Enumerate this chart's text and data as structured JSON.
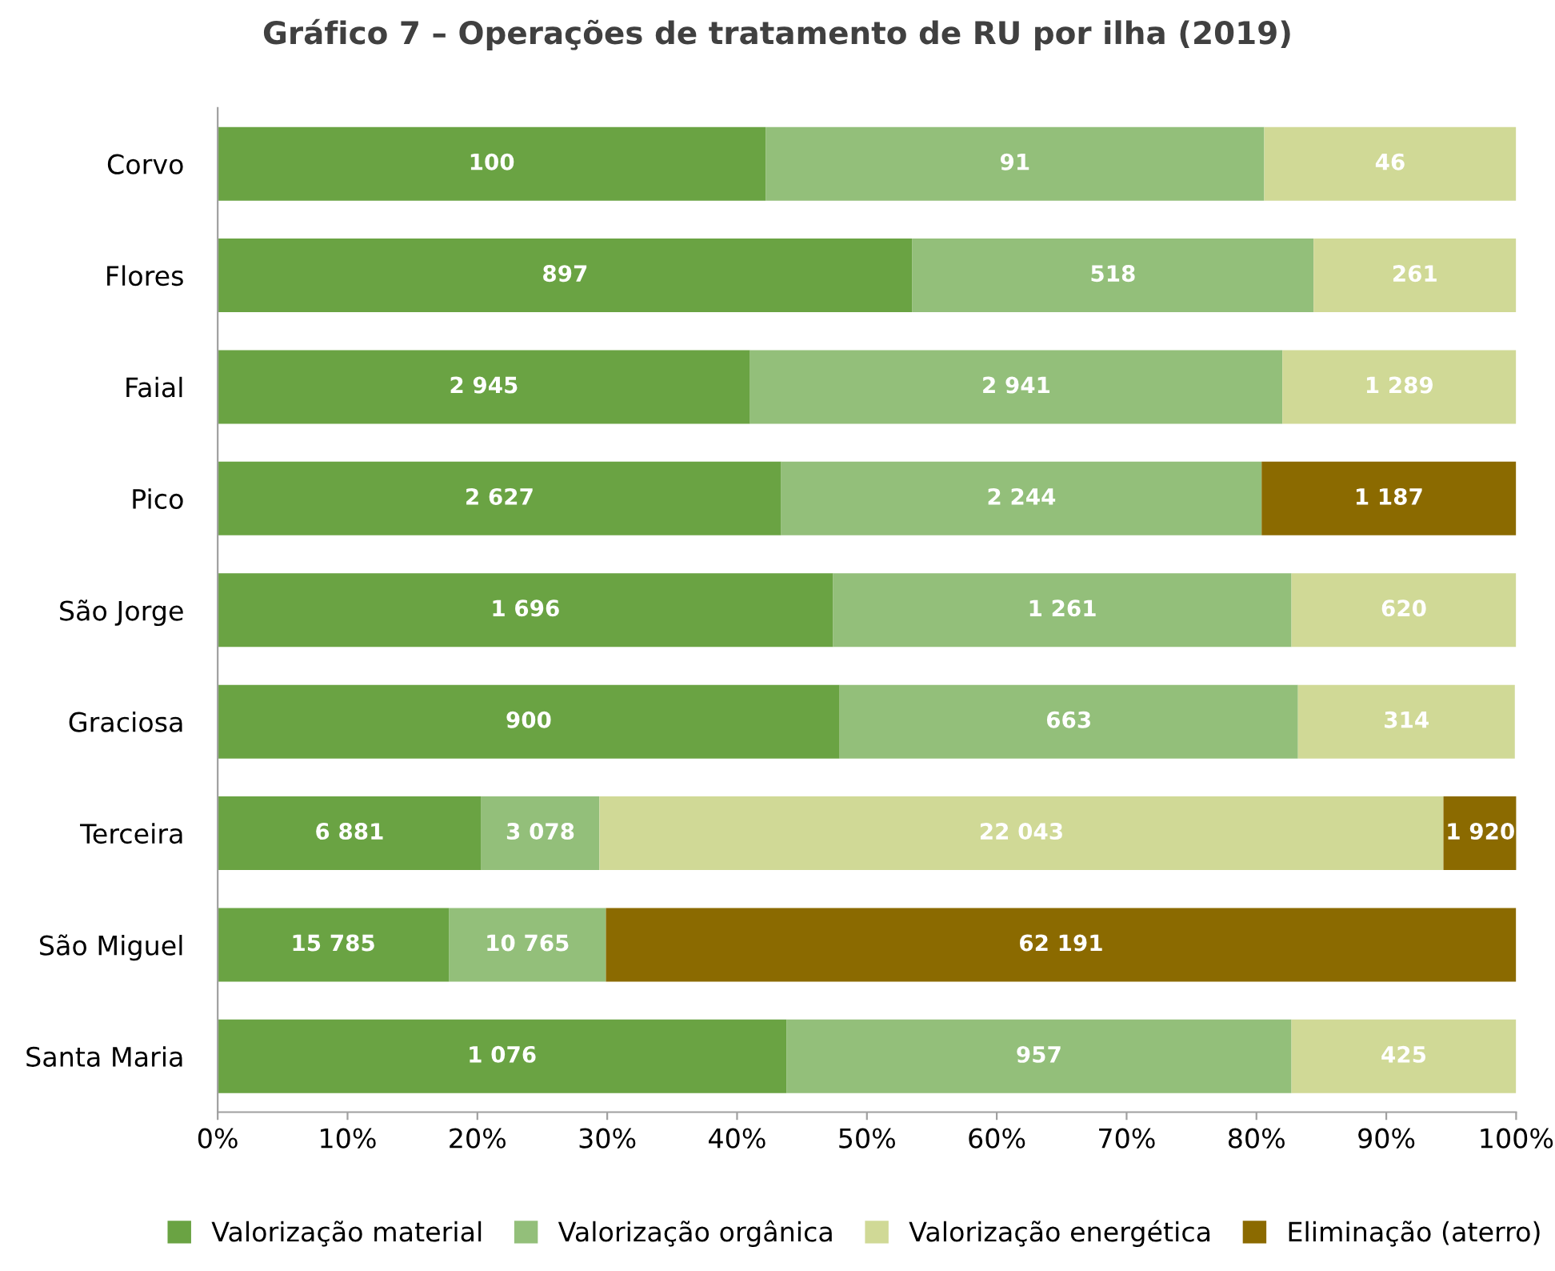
{
  "chart_data": {
    "type": "bar",
    "orientation": "horizontal",
    "stacked": true,
    "title": "Gráfico 7 – Operações de tratamento de RU por ilha (2019)",
    "categories": [
      "Corvo",
      "Flores",
      "Faial",
      "Pico",
      "São Jorge",
      "Graciosa",
      "Terceira",
      "São Miguel",
      "Santa Maria"
    ],
    "series": [
      {
        "name": "Valorização material",
        "color": "#6aa343",
        "values": [
          42.2,
          53.5,
          41.0,
          43.4,
          47.4,
          47.9,
          20.3,
          17.8,
          43.8
        ]
      },
      {
        "name": "Valorização orgânica",
        "color": "#93bf7a",
        "values": [
          38.4,
          30.9,
          41.0,
          37.0,
          35.3,
          35.3,
          9.1,
          12.1,
          38.9
        ]
      },
      {
        "name": "Valorização energética",
        "color": "#d0d996",
        "values": [
          19.4,
          15.6,
          18.0,
          null,
          17.3,
          16.7,
          65.0,
          null,
          17.3
        ]
      },
      {
        "name": "Eliminação (aterro)",
        "color": "#8b6a00",
        "values": [
          null,
          null,
          null,
          19.6,
          null,
          null,
          5.7,
          70.1,
          null
        ]
      }
    ],
    "annotations": [
      "100",
      "91",
      "46",
      "897",
      "518",
      "261",
      "2 945",
      "2 941",
      "1 289",
      "2 627",
      "2 244",
      "1 187",
      "1 696",
      "1 261",
      "620",
      "900",
      "663",
      "314",
      "6 881",
      "3 078",
      "22 043",
      "1 920",
      "15 785",
      "10 765",
      "62 191",
      "1 076",
      "957",
      "425"
    ],
    "xlim": [
      0,
      100
    ],
    "xticks": [
      {
        "value": 0,
        "label": "0%"
      },
      {
        "value": 10,
        "label": "10%"
      },
      {
        "value": 20,
        "label": "20%"
      },
      {
        "value": 30,
        "label": "30%"
      },
      {
        "value": 40,
        "label": "40%"
      },
      {
        "value": 50,
        "label": "50%"
      },
      {
        "value": 60,
        "label": "60%"
      },
      {
        "value": 70,
        "label": "70%"
      },
      {
        "value": 80,
        "label": "80%"
      },
      {
        "value": 90,
        "label": "90%"
      },
      {
        "value": 100,
        "label": "100%"
      }
    ],
    "grid": false,
    "legend": "bottom"
  }
}
